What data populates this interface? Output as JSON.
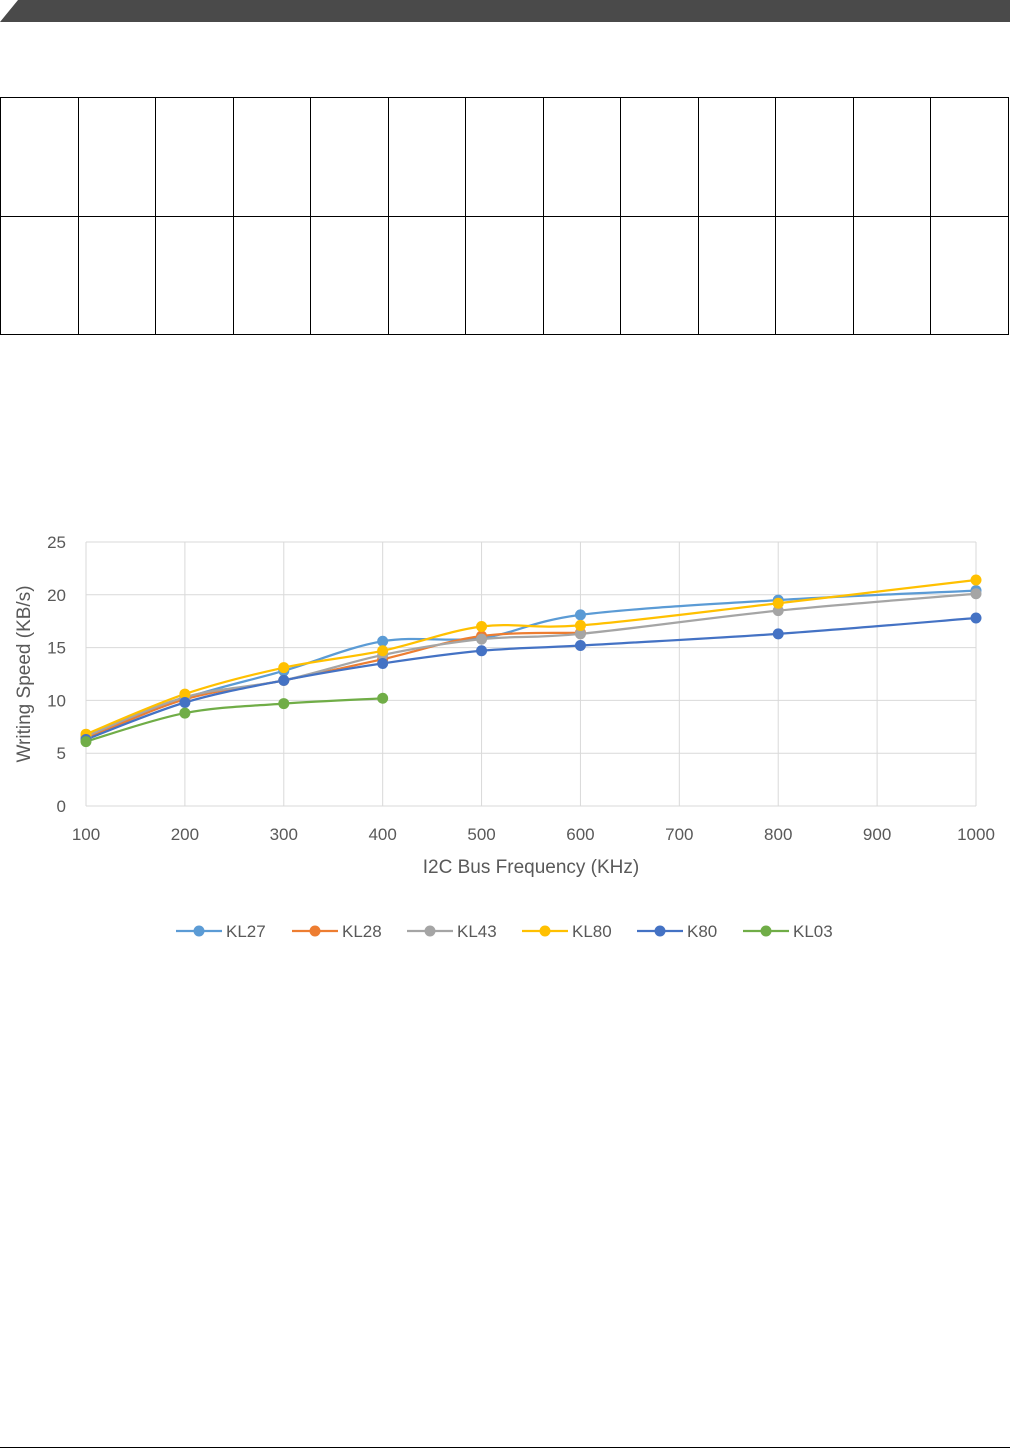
{
  "table": {
    "rows": 2,
    "cols": 13
  },
  "chart_data": {
    "type": "line",
    "smooth": true,
    "xlabel": "I2C Bus Frequency (KHz)",
    "ylabel": "Writing Speed (KB/s)",
    "xlim": [
      100,
      1000
    ],
    "ylim": [
      0,
      25
    ],
    "xticks": [
      100,
      200,
      300,
      400,
      500,
      600,
      700,
      800,
      900,
      1000
    ],
    "yticks": [
      0,
      5,
      10,
      15,
      20,
      25
    ],
    "grid": true,
    "legend": "bottom",
    "series": [
      {
        "name": "KL27",
        "color": "#5B9BD5",
        "x": [
          100,
          200,
          300,
          400,
          500,
          600,
          800,
          1000
        ],
        "y": [
          6.5,
          10.2,
          12.8,
          15.6,
          15.9,
          18.1,
          19.5,
          20.4
        ]
      },
      {
        "name": "KL28",
        "color": "#ED7D31",
        "x": [
          100,
          200,
          300,
          400,
          500,
          600
        ],
        "y": [
          6.4,
          10.1,
          11.9,
          13.9,
          16.1,
          16.4
        ]
      },
      {
        "name": "KL43",
        "color": "#A5A5A5",
        "x": [
          100,
          200,
          300,
          400,
          500,
          600,
          800,
          1000
        ],
        "y": [
          6.6,
          10.3,
          11.9,
          14.3,
          15.8,
          16.3,
          18.5,
          20.1
        ]
      },
      {
        "name": "KL80",
        "color": "#FFC000",
        "x": [
          100,
          200,
          300,
          400,
          500,
          600,
          800,
          1000
        ],
        "y": [
          6.8,
          10.6,
          13.1,
          14.7,
          17.0,
          17.1,
          19.2,
          21.4
        ]
      },
      {
        "name": "K80",
        "color": "#4472C4",
        "x": [
          100,
          200,
          300,
          400,
          500,
          600,
          800,
          1000
        ],
        "y": [
          6.3,
          9.8,
          11.9,
          13.5,
          14.7,
          15.2,
          16.3,
          17.8
        ]
      },
      {
        "name": "KL03",
        "color": "#70AD47",
        "x": [
          100,
          200,
          300,
          400
        ],
        "y": [
          6.1,
          8.8,
          9.7,
          10.2
        ]
      }
    ]
  }
}
